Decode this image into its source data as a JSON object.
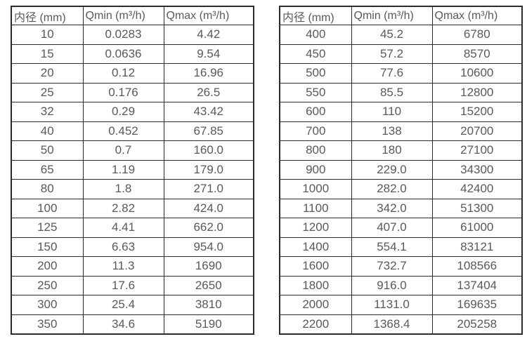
{
  "page": {
    "background_color": "#ffffff",
    "text_color": "#595959",
    "border_color": "#2b2b2b"
  },
  "tables": [
    {
      "title": "small-diameter-flow-capacity",
      "headers": [
        "内径 (mm)",
        "Qmin (m³/h)",
        "Qmax (m³/h)"
      ],
      "rows": [
        [
          "10",
          "0.0283",
          "4.42"
        ],
        [
          "15",
          "0.0636",
          "9.54"
        ],
        [
          "20",
          "0.12",
          "16.96"
        ],
        [
          "25",
          "0.176",
          "26.5"
        ],
        [
          "32",
          "0.29",
          "43.42"
        ],
        [
          "40",
          "0.452",
          "67.85"
        ],
        [
          "50",
          "0.7",
          "160.0"
        ],
        [
          "65",
          "1.19",
          "179.0"
        ],
        [
          "80",
          "1.8",
          "271.0"
        ],
        [
          "100",
          "2.82",
          "424.0"
        ],
        [
          "125",
          "4.41",
          "662.0"
        ],
        [
          "150",
          "6.63",
          "954.0"
        ],
        [
          "200",
          "11.3",
          "1690"
        ],
        [
          "250",
          "17.6",
          "2650"
        ],
        [
          "300",
          "25.4",
          "3810"
        ],
        [
          "350",
          "34.6",
          "5190"
        ]
      ]
    },
    {
      "title": "large-diameter-flow-capacity",
      "headers": [
        "内径 (mm)",
        "Qmin (m³/h)",
        "Qmax (m³/h)"
      ],
      "rows": [
        [
          "400",
          "45.2",
          "6780"
        ],
        [
          "450",
          "57.2",
          "8570"
        ],
        [
          "500",
          "77.6",
          "10600"
        ],
        [
          "550",
          "85.5",
          "12800"
        ],
        [
          "600",
          "110",
          "15200"
        ],
        [
          "700",
          "138",
          "20700"
        ],
        [
          "800",
          "180",
          "27100"
        ],
        [
          "900",
          "229.0",
          "34300"
        ],
        [
          "1000",
          "282.0",
          "42400"
        ],
        [
          "1100",
          "342.0",
          "51300"
        ],
        [
          "1200",
          "407.0",
          "61000"
        ],
        [
          "1400",
          "554.1",
          "83121"
        ],
        [
          "1600",
          "732.7",
          "108566"
        ],
        [
          "1800",
          "916.0",
          "137404"
        ],
        [
          "2000",
          "1131.0",
          "169635"
        ],
        [
          "2200",
          "1368.4",
          "205258"
        ]
      ]
    }
  ]
}
